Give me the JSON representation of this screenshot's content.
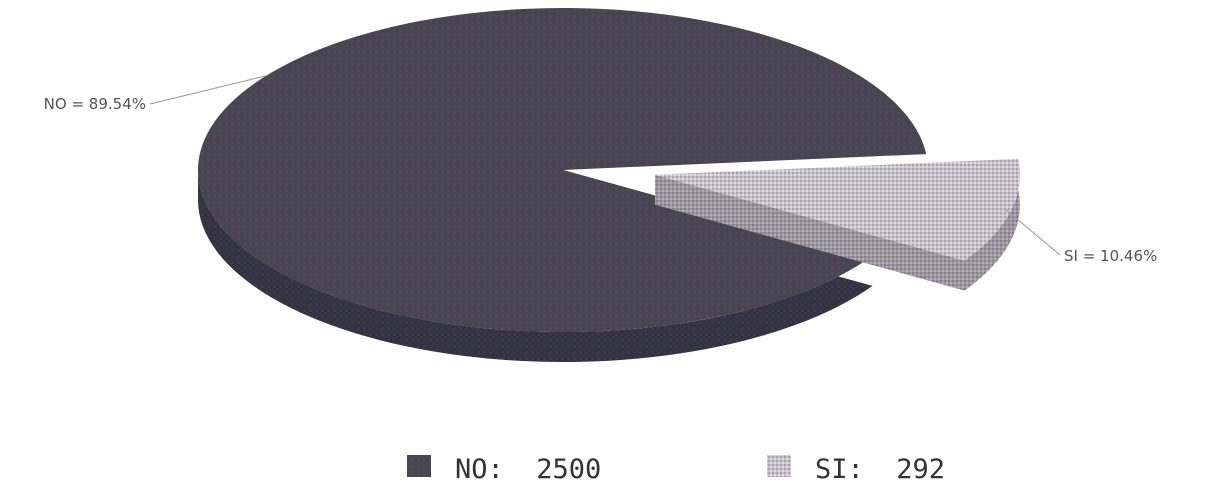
{
  "chart_data": {
    "type": "pie",
    "slices": [
      {
        "label": "NO",
        "value": 2500,
        "percent_label": "NO = 89.54%",
        "legend_label": "NO:  2500",
        "color": "#4a4450"
      },
      {
        "label": "SI",
        "value": 292,
        "percent_label": "SI = 10.46%",
        "legend_label": "SI:  292",
        "color": "#c4c0c8"
      }
    ],
    "legend_position": "bottom",
    "three_d": true,
    "exploded": "SI"
  }
}
